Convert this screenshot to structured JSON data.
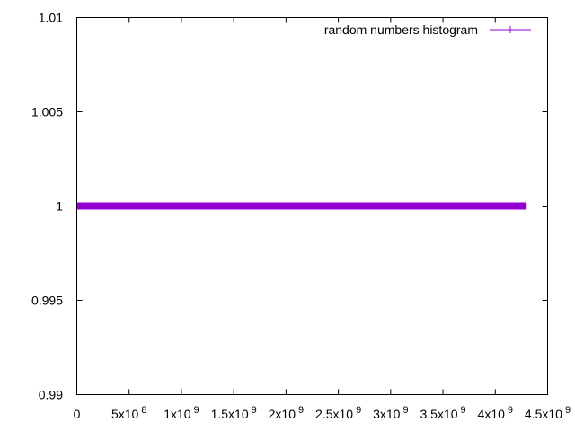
{
  "chart_data": {
    "type": "line",
    "title": "",
    "xlabel": "",
    "ylabel": "",
    "xlim": [
      0,
      4500000000
    ],
    "ylim": [
      0.99,
      1.01
    ],
    "grid": false,
    "legend_placement": "top-right",
    "x_ticks": [
      {
        "value": 0,
        "label": "0"
      },
      {
        "value": 500000000,
        "label": "5x10",
        "exp": "8"
      },
      {
        "value": 1000000000,
        "label": "1x10",
        "exp": "9"
      },
      {
        "value": 1500000000,
        "label": "1.5x10",
        "exp": "9"
      },
      {
        "value": 2000000000,
        "label": "2x10",
        "exp": "9"
      },
      {
        "value": 2500000000,
        "label": "2.5x10",
        "exp": "9"
      },
      {
        "value": 3000000000,
        "label": "3x10",
        "exp": "9"
      },
      {
        "value": 3500000000,
        "label": "3.5x10",
        "exp": "9"
      },
      {
        "value": 4000000000,
        "label": "4x10",
        "exp": "9"
      },
      {
        "value": 4500000000,
        "label": "4.5x10",
        "exp": "9"
      }
    ],
    "y_ticks": [
      {
        "value": 0.99,
        "label": "0.99"
      },
      {
        "value": 0.995,
        "label": "0.995"
      },
      {
        "value": 1.0,
        "label": "1"
      },
      {
        "value": 1.005,
        "label": "1.005"
      },
      {
        "value": 1.01,
        "label": "1.01"
      }
    ],
    "series": [
      {
        "name": "random numbers histogram",
        "color": "#9400d3",
        "x_range": [
          0,
          4300000000
        ],
        "y": 1
      }
    ]
  }
}
